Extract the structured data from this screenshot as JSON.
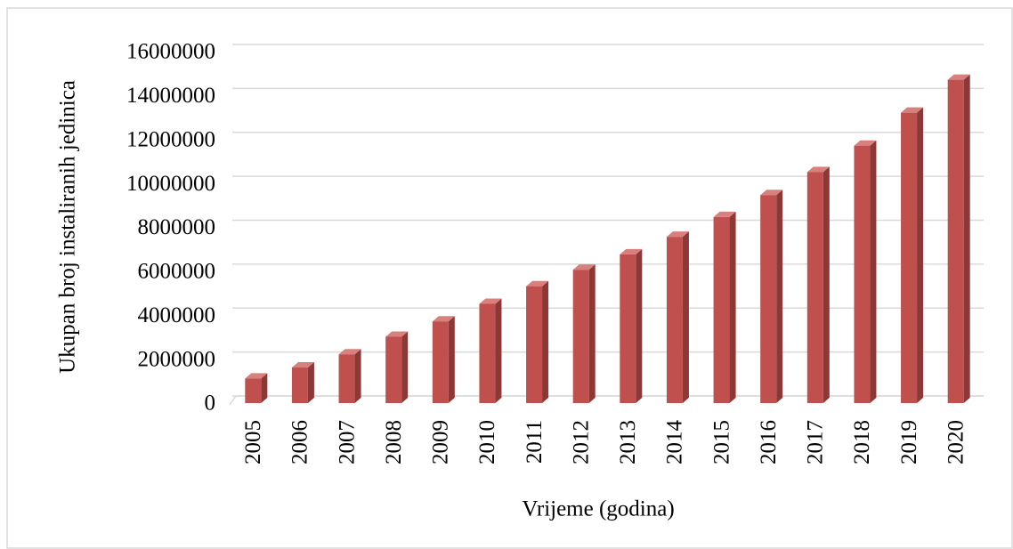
{
  "chart_data": {
    "type": "bar3d",
    "y_label": "Ukupan broj instaliranih jedinica",
    "x_label": "Vrijeme (godina)",
    "categories": [
      "2005",
      "2006",
      "2007",
      "2008",
      "2009",
      "2010",
      "2011",
      "2012",
      "2013",
      "2014",
      "2015",
      "2016",
      "2017",
      "2018",
      "2019",
      "2020"
    ],
    "values": [
      1200000,
      1700000,
      2300000,
      3100000,
      3800000,
      4600000,
      5400000,
      6150000,
      6850000,
      7650000,
      8550000,
      9550000,
      10600000,
      11800000,
      13300000,
      14800000
    ],
    "color": "#c0504d",
    "ylim": [
      0,
      16000000
    ],
    "yticks": [
      0,
      2000000,
      4000000,
      6000000,
      8000000,
      10000000,
      12000000,
      14000000,
      16000000
    ],
    "grid": true
  }
}
